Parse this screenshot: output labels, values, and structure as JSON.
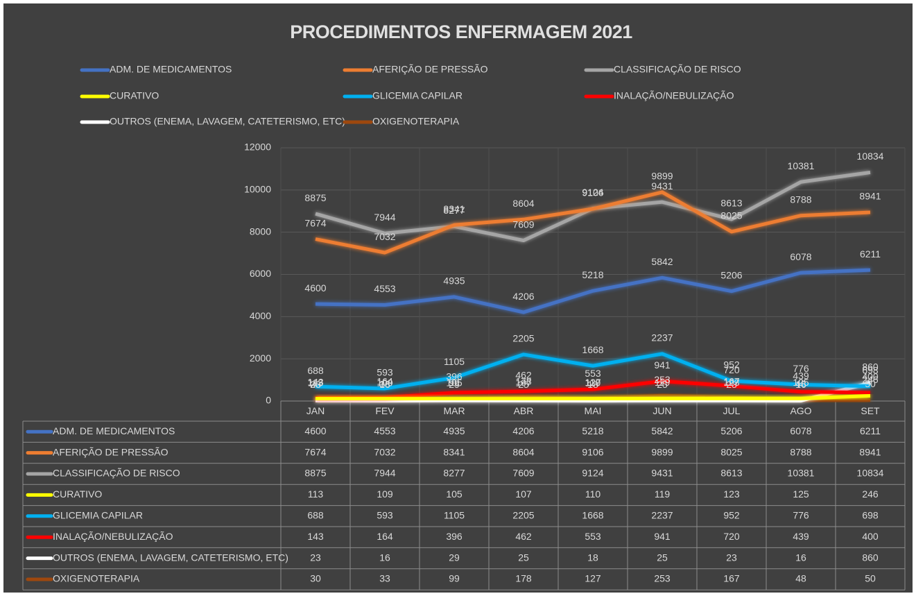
{
  "chart_data": {
    "type": "line",
    "title": "PROCEDIMENTOS ENFERMAGEM 2021",
    "categories": [
      "JAN",
      "FEV",
      "MAR",
      "ABR",
      "MAI",
      "JUN",
      "JUL",
      "AGO",
      "SET"
    ],
    "series": [
      {
        "name": "ADM. DE MEDICAMENTOS",
        "color": "#4472c4",
        "values": [
          4600,
          4553,
          4935,
          4206,
          5218,
          5842,
          5206,
          6078,
          6211
        ]
      },
      {
        "name": "AFERIÇÃO DE PRESSÃO",
        "color": "#ed7d31",
        "values": [
          7674,
          7032,
          8341,
          8604,
          9106,
          9899,
          8025,
          8788,
          8941
        ]
      },
      {
        "name": "CLASSIFICAÇÃO DE RISCO",
        "color": "#a5a5a5",
        "values": [
          8875,
          7944,
          8277,
          7609,
          9124,
          9431,
          8613,
          10381,
          10834
        ]
      },
      {
        "name": "CURATIVO",
        "color": "#ffff00",
        "values": [
          113,
          109,
          105,
          107,
          110,
          119,
          123,
          125,
          246
        ]
      },
      {
        "name": "GLICEMIA CAPILAR",
        "color": "#00b0f0",
        "values": [
          688,
          593,
          1105,
          2205,
          1668,
          2237,
          952,
          776,
          698
        ]
      },
      {
        "name": "INALAÇÃO/NEBULIZAÇÃO",
        "color": "#ff0000",
        "values": [
          143,
          164,
          396,
          462,
          553,
          941,
          720,
          439,
          400
        ]
      },
      {
        "name": "OUTROS (ENEMA, LAVAGEM, CATETERISMO, ETC)",
        "color": "#ffffff",
        "values": [
          23,
          16,
          29,
          25,
          18,
          25,
          23,
          16,
          860
        ]
      },
      {
        "name": "OXIGENOTERAPIA",
        "color": "#9e480e",
        "values": [
          30,
          33,
          99,
          178,
          127,
          253,
          167,
          48,
          50
        ]
      }
    ],
    "ylim": [
      0,
      12000
    ],
    "yticks": [
      0,
      2000,
      4000,
      6000,
      8000,
      10000,
      12000
    ],
    "grid": true,
    "legend": "top",
    "data_labels": true,
    "data_table": true
  }
}
